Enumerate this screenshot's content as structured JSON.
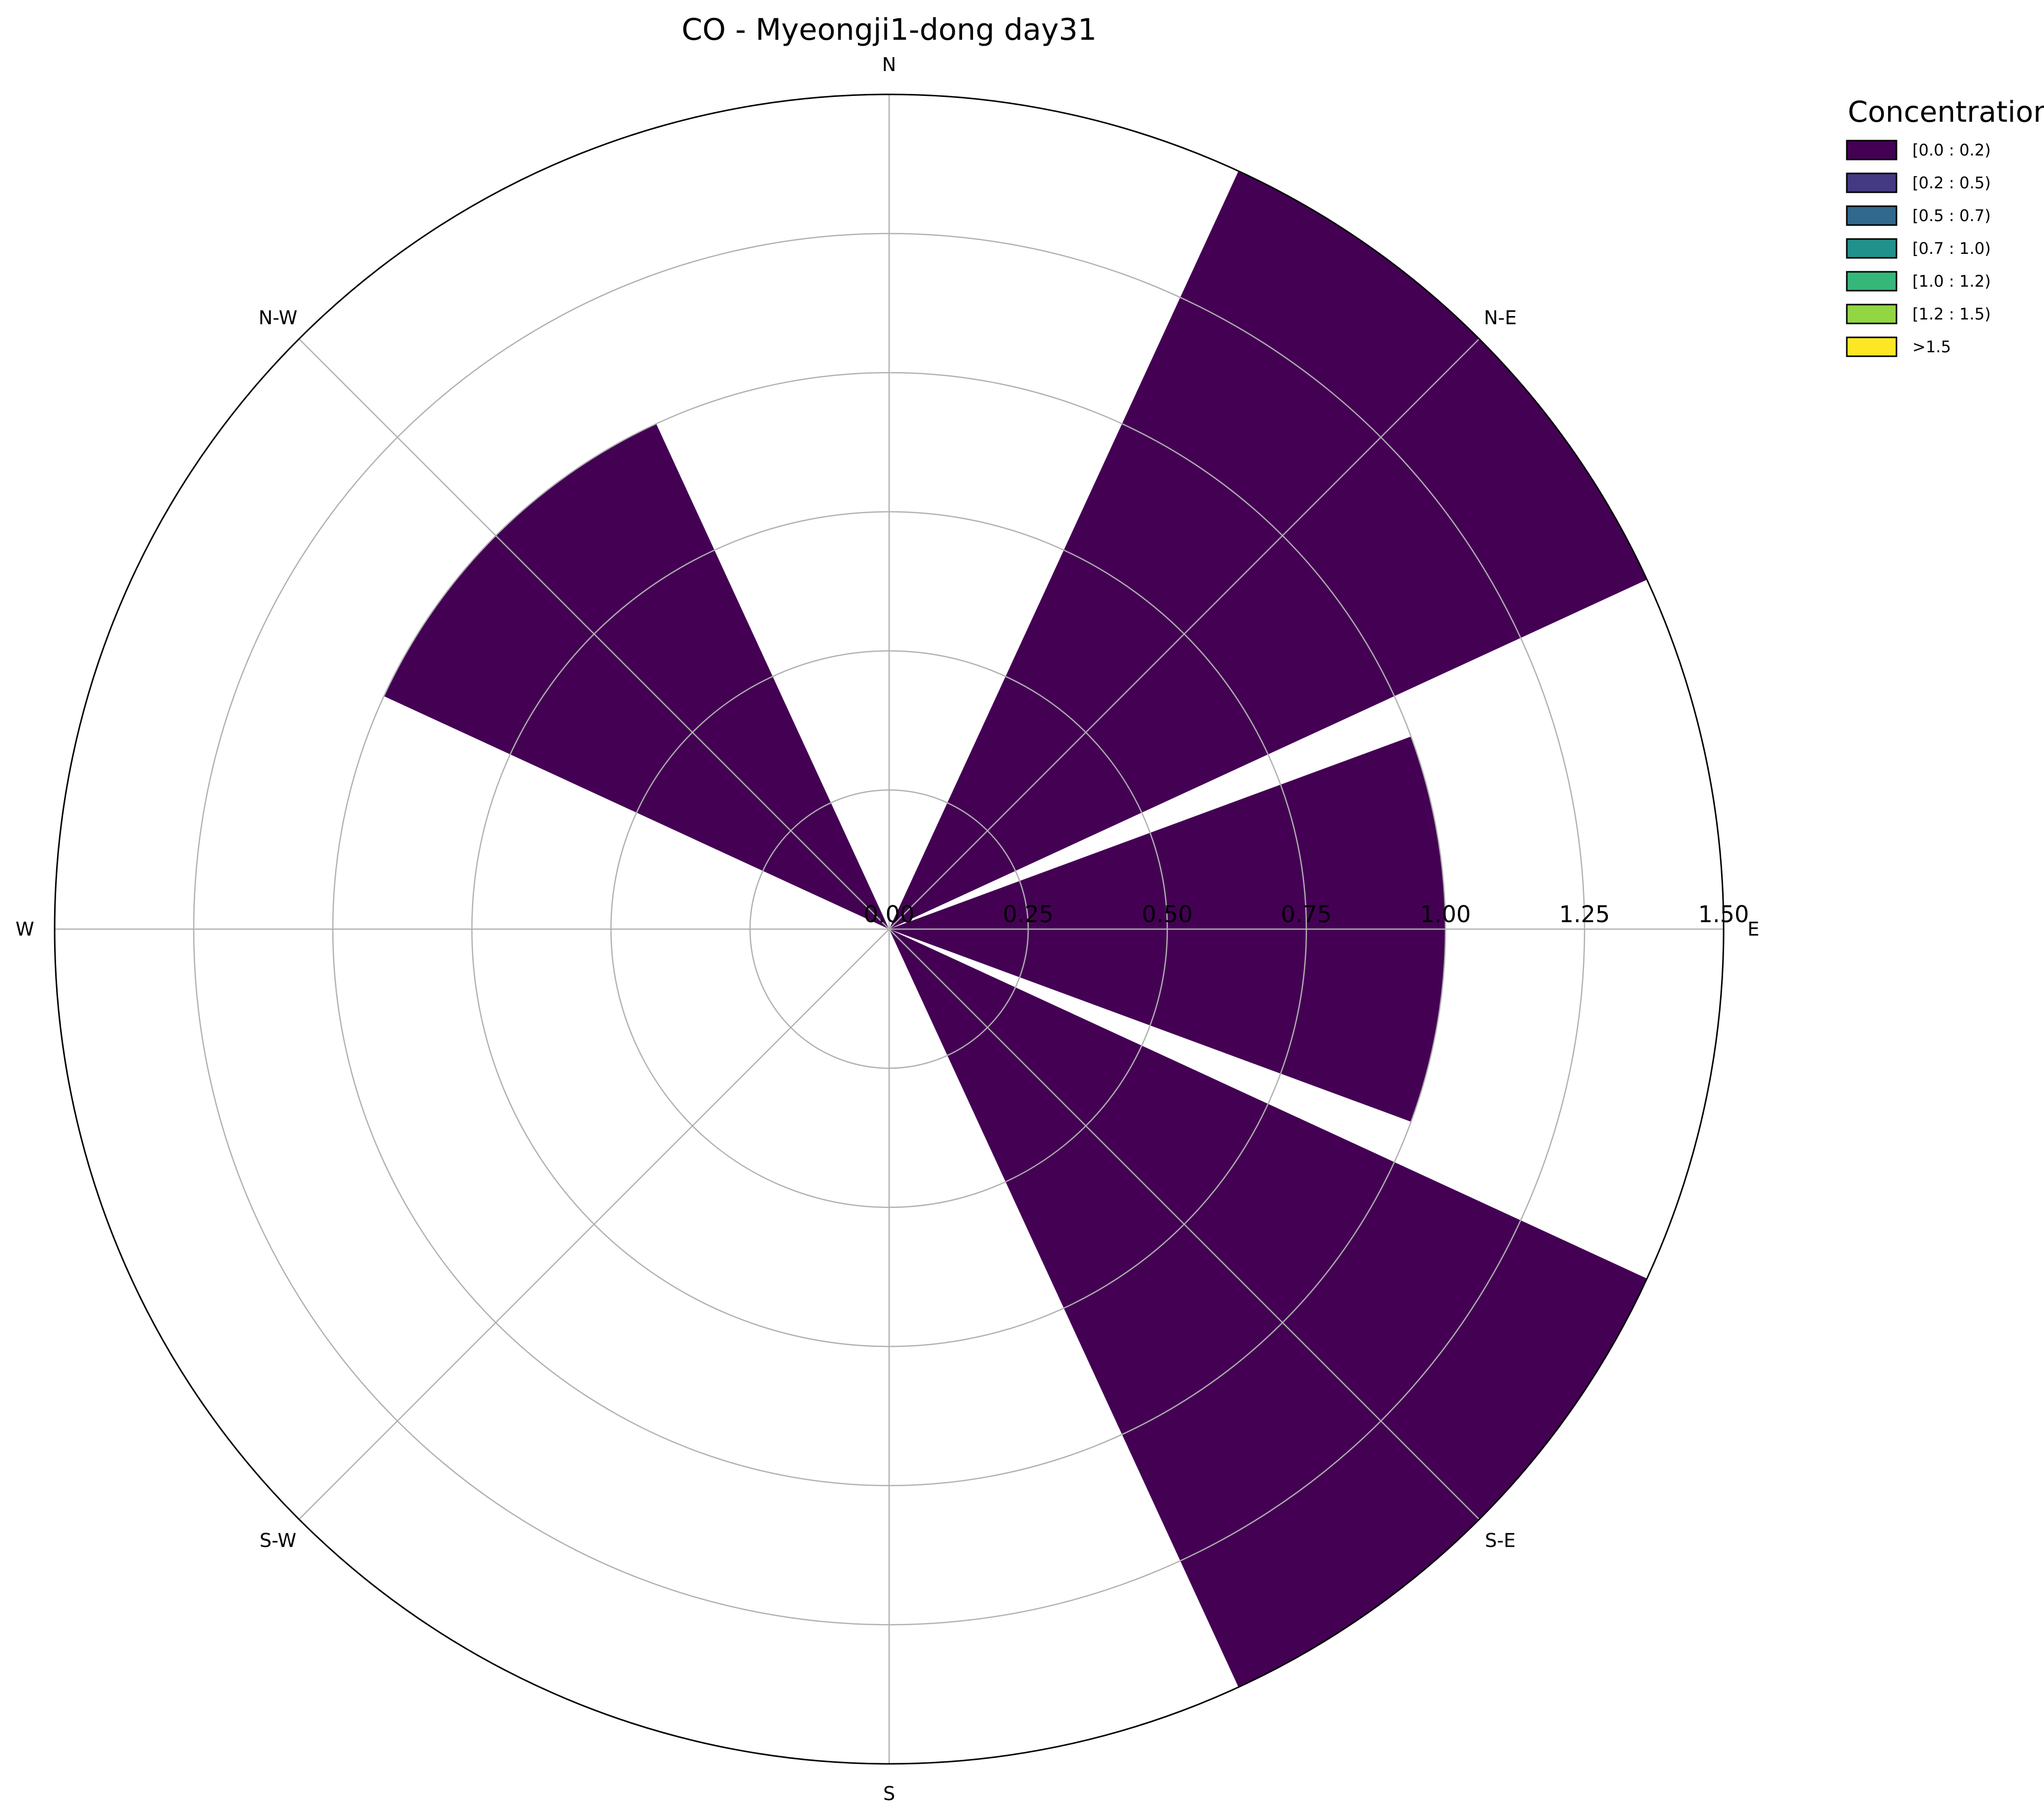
{
  "chart_data": {
    "type": "windrose",
    "title": "CO - Myeongji1-dong day31",
    "directions": [
      "N",
      "N-E",
      "E",
      "S-E",
      "S",
      "S-W",
      "W",
      "N-W"
    ],
    "r_ticks": [
      "0.00",
      "0.25",
      "0.50",
      "0.75",
      "1.00",
      "1.25",
      "1.50"
    ],
    "r_max": 1.5,
    "grid": true,
    "legend": {
      "title": "Concentration",
      "placement": "top-right",
      "bins": [
        {
          "label": "[0.0 : 0.2)",
          "color": "#440154"
        },
        {
          "label": "[0.2 : 0.5)",
          "color": "#443983"
        },
        {
          "label": "[0.5 : 0.7)",
          "color": "#31688e"
        },
        {
          "label": "[0.7 : 1.0)",
          "color": "#21918c"
        },
        {
          "label": "[1.0 : 1.2)",
          "color": "#35b779"
        },
        {
          "label": "[1.2 : 1.5)",
          "color": "#90d743"
        },
        {
          "label": ">1.5",
          "color": "#fde725"
        }
      ]
    },
    "sectors": [
      {
        "direction": "N",
        "value": 0.0
      },
      {
        "direction": "N-E",
        "value": 1.5
      },
      {
        "direction": "E",
        "value": 1.0
      },
      {
        "direction": "S-E",
        "value": 1.5
      },
      {
        "direction": "S",
        "value": 0.0
      },
      {
        "direction": "S-W",
        "value": 0.0
      },
      {
        "direction": "W",
        "value": 0.0
      },
      {
        "direction": "N-W",
        "value": 1.0
      }
    ]
  }
}
